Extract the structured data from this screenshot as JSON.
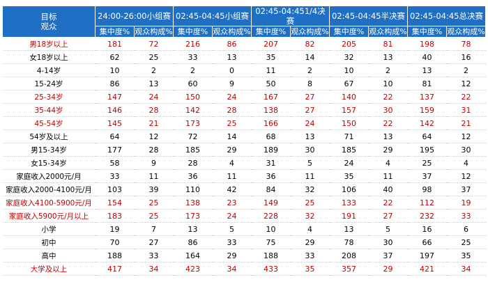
{
  "table": {
    "corner": [
      "目标",
      "观众"
    ],
    "groups": [
      "24:00-26:00小组赛",
      "02:45-04:45小组赛",
      "02:45-04:451/4决赛",
      "02:45-04:45半决赛",
      "02:45-04:45总决赛"
    ],
    "subheaders": [
      "集中度%",
      "观众构成%",
      "集中度%",
      "观众构成%",
      "集中度%",
      "观众构成%",
      "集中度%",
      "观众构成%",
      "集中度%",
      "观众构成%"
    ],
    "rows": [
      {
        "label": "男18岁以上",
        "values": [
          181,
          72,
          216,
          86,
          207,
          82,
          205,
          81,
          198,
          78
        ],
        "highlight": true
      },
      {
        "label": "女18岁以上",
        "values": [
          62,
          25,
          33,
          13,
          35,
          14,
          32,
          13,
          40,
          16
        ],
        "highlight": false
      },
      {
        "label": "4-14岁",
        "values": [
          10,
          2,
          2,
          0,
          11,
          2,
          10,
          2,
          13,
          2
        ],
        "highlight": false
      },
      {
        "label": "15-24岁",
        "values": [
          86,
          13,
          60,
          9,
          50,
          8,
          67,
          10,
          81,
          12
        ],
        "highlight": false
      },
      {
        "label": "25-34岁",
        "values": [
          147,
          24,
          150,
          24,
          167,
          27,
          140,
          22,
          137,
          22
        ],
        "highlight": true
      },
      {
        "label": "35-44岁",
        "values": [
          146,
          28,
          142,
          28,
          138,
          27,
          157,
          30,
          159,
          31
        ],
        "highlight": true
      },
      {
        "label": "45-54岁",
        "values": [
          145,
          21,
          173,
          25,
          166,
          24,
          150,
          22,
          142,
          21
        ],
        "highlight": true
      },
      {
        "label": "54岁及以上",
        "values": [
          64,
          12,
          72,
          14,
          68,
          13,
          71,
          13,
          64,
          12
        ],
        "highlight": false
      },
      {
        "label": "男15-34岁",
        "values": [
          177,
          28,
          185,
          29,
          189,
          30,
          185,
          29,
          195,
          30
        ],
        "highlight": false
      },
      {
        "label": "女15-34岁",
        "values": [
          58,
          9,
          28,
          4,
          31,
          5,
          24,
          4,
          25,
          4
        ],
        "highlight": false
      },
      {
        "label": "家庭收入2000元/月",
        "values": [
          33,
          11,
          36,
          11,
          36,
          11,
          35,
          11,
          37,
          12
        ],
        "highlight": false
      },
      {
        "label": "家庭收入2000-4100元/月",
        "values": [
          103,
          39,
          110,
          42,
          84,
          32,
          106,
          40,
          98,
          37
        ],
        "highlight": false
      },
      {
        "label": "家庭收入4100-5900元/月",
        "values": [
          154,
          25,
          138,
          23,
          149,
          25,
          133,
          22,
          112,
          19
        ],
        "highlight": true
      },
      {
        "label": "家庭收入5900元/月以上",
        "values": [
          183,
          25,
          173,
          24,
          228,
          32,
          191,
          27,
          232,
          33
        ],
        "highlight": true
      },
      {
        "label": "小学",
        "values": [
          19,
          7,
          13,
          5,
          10,
          4,
          13,
          5,
          16,
          6
        ],
        "highlight": false
      },
      {
        "label": "初中",
        "values": [
          70,
          27,
          86,
          33,
          75,
          29,
          78,
          30,
          66,
          25
        ],
        "highlight": false
      },
      {
        "label": "高中",
        "values": [
          188,
          33,
          164,
          29,
          188,
          33,
          208,
          37,
          197,
          35
        ],
        "highlight": false
      },
      {
        "label": "大学及以上",
        "values": [
          417,
          34,
          423,
          34,
          433,
          35,
          357,
          29,
          421,
          34
        ],
        "highlight": true
      }
    ]
  }
}
